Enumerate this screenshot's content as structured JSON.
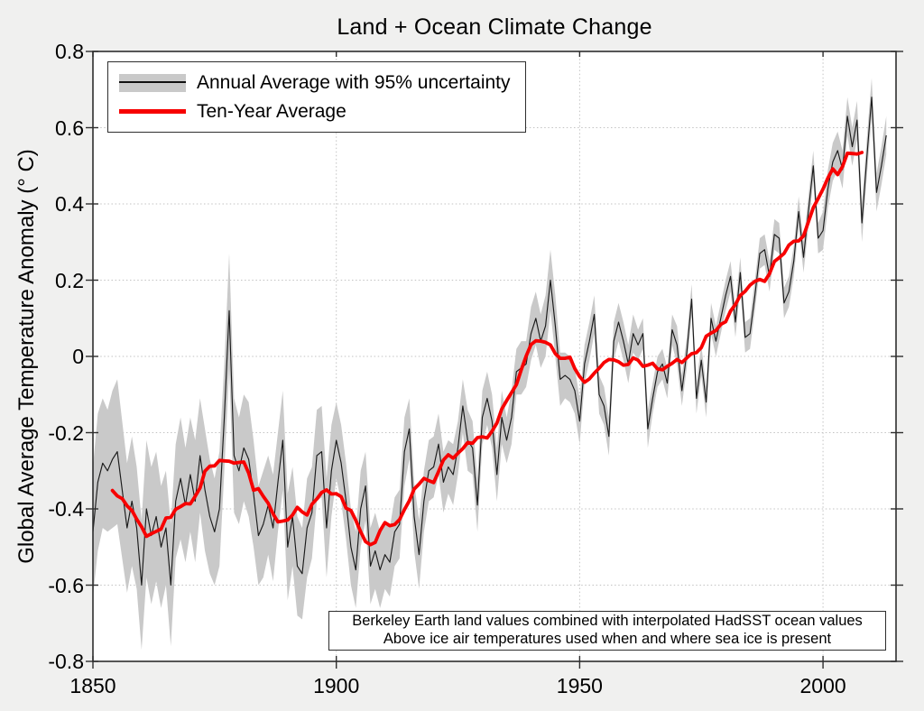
{
  "header": {
    "title": "Land + Ocean Climate Change"
  },
  "colors": {
    "background": "#f0f0ef",
    "plot_background": "#ffffff",
    "axis": "#2e2e2e",
    "grid": "#c3c3c3",
    "band": "#c9c9c9",
    "annual_line": "#1a1a1a",
    "ten_year_line": "#f70000"
  },
  "axes": {
    "y_label": "Global Average Temperature Anomaly (° C)",
    "y_tick_values": [
      0.8,
      0.6,
      0.4,
      0.2,
      0,
      -0.2,
      -0.4,
      -0.6,
      -0.8
    ],
    "y_tick_labels": [
      "0.8",
      "0.6",
      "0.4",
      "0.2",
      "0",
      "-0.2",
      "-0.4",
      "-0.6",
      "-0.8"
    ],
    "x_tick_values": [
      1850,
      1900,
      1950,
      2000
    ],
    "x_tick_labels": [
      "1850",
      "1900",
      "1950",
      "2000"
    ],
    "y_grid_values": [
      0.6,
      0.4,
      0.2,
      0,
      -0.2,
      -0.4,
      -0.6
    ],
    "x_grid_values": [
      1900,
      1950,
      2000
    ]
  },
  "legend": {
    "items": [
      {
        "label": "Annual Average with 95% uncertainty",
        "swatch": "gray-band-with-black-line"
      },
      {
        "label": "Ten-Year Average",
        "swatch": "red-line"
      }
    ]
  },
  "annotation": {
    "line1": "Berkeley Earth land values combined with interpolated HadSST ocean values",
    "line2": "Above ice air temperatures used when and where sea ice is present"
  },
  "chart_data": {
    "type": "line",
    "title": "Land + Ocean Climate Change",
    "xlabel": "",
    "ylabel": "Global Average Temperature Anomaly (° C)",
    "xlim": [
      1850,
      2015
    ],
    "ylim": [
      -0.8,
      0.8
    ],
    "x_ticks": [
      1850,
      1900,
      1950,
      2000
    ],
    "y_ticks": [
      0.8,
      0.6,
      0.4,
      0.2,
      0,
      -0.2,
      -0.4,
      -0.6,
      -0.8
    ],
    "grid": "dotted",
    "legend_position": "upper left",
    "source_note": [
      "Berkeley Earth land values combined with interpolated HadSST ocean values",
      "Above ice air temperatures used when and where sea ice is present"
    ],
    "series": [
      {
        "name": "Annual Average with 95% uncertainty",
        "type": "line_with_band",
        "color": "#1a1a1a",
        "band_color": "#c9c9c9",
        "year_start": 1850,
        "annual_anomaly_c": [
          -0.46,
          -0.33,
          -0.28,
          -0.3,
          -0.27,
          -0.25,
          -0.35,
          -0.45,
          -0.38,
          -0.45,
          -0.6,
          -0.4,
          -0.47,
          -0.42,
          -0.5,
          -0.45,
          -0.6,
          -0.38,
          -0.32,
          -0.39,
          -0.31,
          -0.38,
          -0.26,
          -0.35,
          -0.42,
          -0.46,
          -0.4,
          -0.16,
          0.12,
          -0.26,
          -0.3,
          -0.24,
          -0.27,
          -0.36,
          -0.47,
          -0.44,
          -0.39,
          -0.45,
          -0.33,
          -0.22,
          -0.5,
          -0.42,
          -0.55,
          -0.57,
          -0.45,
          -0.41,
          -0.26,
          -0.25,
          -0.45,
          -0.3,
          -0.22,
          -0.28,
          -0.38,
          -0.5,
          -0.56,
          -0.4,
          -0.34,
          -0.55,
          -0.51,
          -0.56,
          -0.52,
          -0.54,
          -0.46,
          -0.44,
          -0.25,
          -0.19,
          -0.42,
          -0.52,
          -0.38,
          -0.3,
          -0.29,
          -0.23,
          -0.33,
          -0.29,
          -0.31,
          -0.24,
          -0.13,
          -0.22,
          -0.24,
          -0.39,
          -0.16,
          -0.11,
          -0.17,
          -0.31,
          -0.16,
          -0.22,
          -0.16,
          -0.04,
          -0.03,
          -0.02,
          0.06,
          0.1,
          0.04,
          0.08,
          0.2,
          0.08,
          -0.06,
          -0.05,
          -0.06,
          -0.09,
          -0.17,
          -0.02,
          0.04,
          0.11,
          -0.1,
          -0.13,
          -0.21,
          0.04,
          0.09,
          0.04,
          -0.02,
          0.06,
          0.03,
          0.06,
          -0.19,
          -0.11,
          -0.04,
          -0.02,
          -0.07,
          0.07,
          0.03,
          -0.09,
          0.01,
          0.15,
          -0.11,
          -0.01,
          -0.12,
          0.1,
          0.04,
          0.1,
          0.16,
          0.21,
          0.09,
          0.22,
          0.05,
          0.06,
          0.16,
          0.27,
          0.28,
          0.21,
          0.32,
          0.31,
          0.14,
          0.17,
          0.25,
          0.38,
          0.26,
          0.38,
          0.5,
          0.31,
          0.33,
          0.44,
          0.51,
          0.54,
          0.49,
          0.63,
          0.55,
          0.62,
          0.35,
          0.52,
          0.68,
          0.43,
          0.5,
          0.58
        ],
        "uncertainty_95_halfwidth_c": [
          0.17,
          0.18,
          0.17,
          0.16,
          0.18,
          0.19,
          0.18,
          0.17,
          0.17,
          0.16,
          0.17,
          0.18,
          0.18,
          0.17,
          0.16,
          0.15,
          0.16,
          0.15,
          0.16,
          0.15,
          0.15,
          0.16,
          0.15,
          0.16,
          0.15,
          0.14,
          0.15,
          0.14,
          0.15,
          0.15,
          0.14,
          0.14,
          0.15,
          0.14,
          0.13,
          0.14,
          0.13,
          0.14,
          0.13,
          0.13,
          0.14,
          0.13,
          0.13,
          0.12,
          0.13,
          0.12,
          0.12,
          0.12,
          0.13,
          0.12,
          0.1,
          0.1,
          0.1,
          0.1,
          0.1,
          0.1,
          0.09,
          0.1,
          0.1,
          0.1,
          0.09,
          0.09,
          0.09,
          0.09,
          0.09,
          0.08,
          0.09,
          0.09,
          0.08,
          0.08,
          0.08,
          0.08,
          0.08,
          0.07,
          0.08,
          0.07,
          0.07,
          0.08,
          0.07,
          0.07,
          0.07,
          0.07,
          0.07,
          0.07,
          0.07,
          0.06,
          0.07,
          0.06,
          0.07,
          0.06,
          0.07,
          0.07,
          0.07,
          0.08,
          0.08,
          0.08,
          0.07,
          0.06,
          0.06,
          0.06,
          0.06,
          0.05,
          0.05,
          0.05,
          0.05,
          0.05,
          0.05,
          0.05,
          0.05,
          0.05,
          0.05,
          0.05,
          0.04,
          0.04,
          0.05,
          0.04,
          0.04,
          0.04,
          0.04,
          0.04,
          0.05,
          0.04,
          0.04,
          0.04,
          0.04,
          0.04,
          0.04,
          0.04,
          0.04,
          0.04,
          0.04,
          0.04,
          0.04,
          0.04,
          0.04,
          0.04,
          0.04,
          0.04,
          0.04,
          0.04,
          0.04,
          0.04,
          0.04,
          0.04,
          0.04,
          0.04,
          0.04,
          0.04,
          0.04,
          0.04,
          0.05,
          0.05,
          0.05,
          0.05,
          0.05,
          0.05,
          0.05,
          0.05,
          0.05,
          0.05,
          0.05,
          0.05,
          0.05,
          0.05
        ]
      },
      {
        "name": "Ten-Year Average",
        "type": "line",
        "color": "#f70000",
        "derivation": "10-year centered moving average of the annual series",
        "window_years": 10
      }
    ]
  }
}
